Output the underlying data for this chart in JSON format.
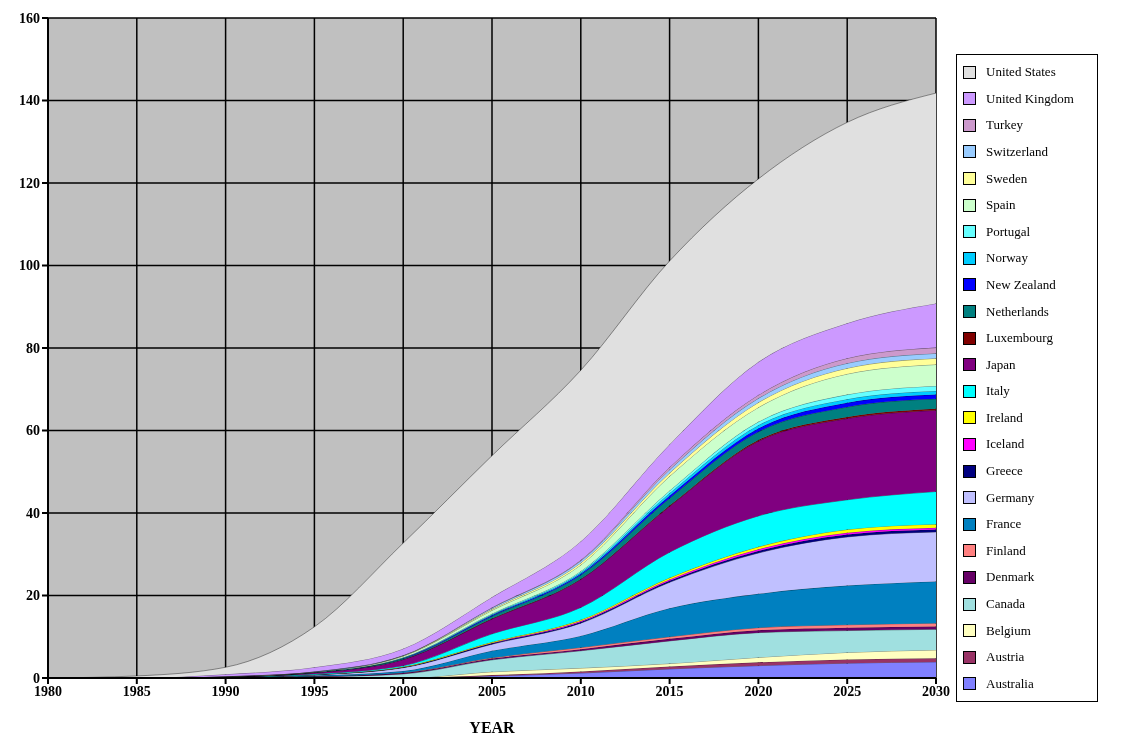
{
  "chart_data": {
    "type": "area",
    "stacked": true,
    "xlabel": "YEAR",
    "x": [
      1980,
      1985,
      1990,
      1995,
      2000,
      2005,
      2010,
      2015,
      2020,
      2025,
      2030
    ],
    "xlim": [
      1980,
      2030
    ],
    "xticks": [
      1980,
      1985,
      1990,
      1995,
      2000,
      2005,
      2010,
      2015,
      2020,
      2025,
      2030
    ],
    "ylim": [
      0,
      160
    ],
    "yticks": [
      0,
      20,
      40,
      60,
      80,
      100,
      120,
      140,
      160
    ],
    "grid": true,
    "legend": "right",
    "series": [
      {
        "name": "Australia",
        "color": "#8080ff",
        "values": [
          0,
          0,
          0,
          0,
          0,
          0.5,
          1.2,
          2.2,
          3.0,
          3.6,
          3.9
        ]
      },
      {
        "name": "Austria",
        "color": "#993366",
        "values": [
          0,
          0,
          0,
          0,
          0,
          0.2,
          0.4,
          0.6,
          0.8,
          0.9,
          0.9
        ]
      },
      {
        "name": "Belgium",
        "color": "#ffffc0",
        "values": [
          0,
          0,
          0,
          0,
          0,
          0.8,
          0.8,
          0.7,
          1.2,
          1.7,
          2.0
        ]
      },
      {
        "name": "Canada",
        "color": "#a0e0e0",
        "values": [
          0,
          0,
          0.1,
          0.3,
          1.0,
          2.9,
          4.2,
          5.5,
          6.0,
          5.3,
          5.0
        ]
      },
      {
        "name": "Denmark",
        "color": "#660066",
        "values": [
          0,
          0,
          0,
          0.1,
          0.2,
          0.3,
          0.4,
          0.5,
          0.6,
          0.7,
          0.7
        ]
      },
      {
        "name": "Finland",
        "color": "#ff8080",
        "values": [
          0,
          0,
          0,
          0,
          0.1,
          0.2,
          0.4,
          0.5,
          0.6,
          0.7,
          0.8
        ]
      },
      {
        "name": "France",
        "color": "#0080c0",
        "values": [
          0,
          0,
          0,
          0.2,
          0.4,
          1.7,
          2.8,
          6.9,
          8.2,
          9.5,
          10.1
        ]
      },
      {
        "name": "Germany",
        "color": "#c0c0ff",
        "values": [
          0,
          0,
          0.1,
          0.2,
          0.8,
          1.6,
          3.1,
          6.3,
          9.9,
          11.8,
          12.0
        ]
      },
      {
        "name": "Greece",
        "color": "#000080",
        "values": [
          0,
          0,
          0,
          0,
          0.1,
          0.2,
          0.3,
          0.4,
          0.5,
          0.6,
          0.6
        ]
      },
      {
        "name": "Iceland",
        "color": "#ff00ff",
        "values": [
          0,
          0,
          0,
          0,
          0,
          0.1,
          0.2,
          0.3,
          0.4,
          0.4,
          0.4
        ]
      },
      {
        "name": "Ireland",
        "color": "#ffff00",
        "values": [
          0,
          0,
          0,
          0,
          0.1,
          0.2,
          0.3,
          0.4,
          0.6,
          0.8,
          0.9
        ]
      },
      {
        "name": "Italy",
        "color": "#00ffff",
        "values": [
          0,
          0,
          0,
          0.2,
          0.3,
          2.0,
          3.0,
          6.2,
          7.5,
          7.2,
          7.9
        ]
      },
      {
        "name": "Japan",
        "color": "#800080",
        "values": [
          0,
          0,
          0.1,
          0.3,
          1.5,
          3.6,
          6.8,
          11.1,
          18.1,
          19.7,
          19.7
        ]
      },
      {
        "name": "Luxembourg",
        "color": "#800000",
        "values": [
          0,
          0,
          0,
          0,
          0,
          0.1,
          0.1,
          0.2,
          0.3,
          0.4,
          0.4
        ]
      },
      {
        "name": "Netherlands",
        "color": "#008080",
        "values": [
          0,
          0,
          0,
          0.1,
          0.2,
          0.6,
          1.0,
          1.8,
          2.0,
          2.4,
          2.4
        ]
      },
      {
        "name": "New Zealand",
        "color": "#0000ff",
        "values": [
          0,
          0,
          0,
          0,
          0.1,
          0.2,
          0.3,
          0.6,
          0.8,
          1.0,
          1.0
        ]
      },
      {
        "name": "Norway",
        "color": "#00ccff",
        "values": [
          0,
          0,
          0,
          0,
          0.1,
          0.2,
          0.3,
          0.6,
          0.8,
          0.9,
          0.9
        ]
      },
      {
        "name": "Portugal",
        "color": "#66ffff",
        "values": [
          0,
          0,
          0,
          0,
          0.1,
          0.2,
          0.3,
          0.6,
          0.8,
          1.1,
          1.2
        ]
      },
      {
        "name": "Spain",
        "color": "#ccffcc",
        "values": [
          0,
          0,
          0.1,
          0.1,
          0.3,
          0.8,
          1.5,
          3.5,
          3.5,
          5.0,
          5.2
        ]
      },
      {
        "name": "Sweden",
        "color": "#ffff99",
        "values": [
          0,
          0,
          0,
          0,
          0.1,
          0.3,
          0.5,
          0.8,
          1.2,
          1.4,
          1.5
        ]
      },
      {
        "name": "Switzerland",
        "color": "#99ccff",
        "values": [
          0,
          0,
          0,
          0.1,
          0.1,
          0.3,
          0.5,
          0.8,
          1.0,
          1.2,
          1.2
        ]
      },
      {
        "name": "Turkey",
        "color": "#cc99cc",
        "values": [
          0,
          0,
          0,
          0,
          0,
          0.1,
          0.2,
          0.6,
          0.8,
          1.2,
          1.4
        ]
      },
      {
        "name": "United Kingdom",
        "color": "#cc99ff",
        "values": [
          0,
          0,
          0.5,
          1.0,
          1.6,
          2.5,
          4.5,
          5.5,
          8.0,
          8.5,
          10.7
        ]
      },
      {
        "name": "United States",
        "color": "#e0e0e0",
        "values": [
          0,
          0.5,
          1.7,
          9.8,
          25.6,
          34.3,
          41.5,
          44.5,
          44.4,
          48.7,
          51.0
        ]
      }
    ]
  }
}
